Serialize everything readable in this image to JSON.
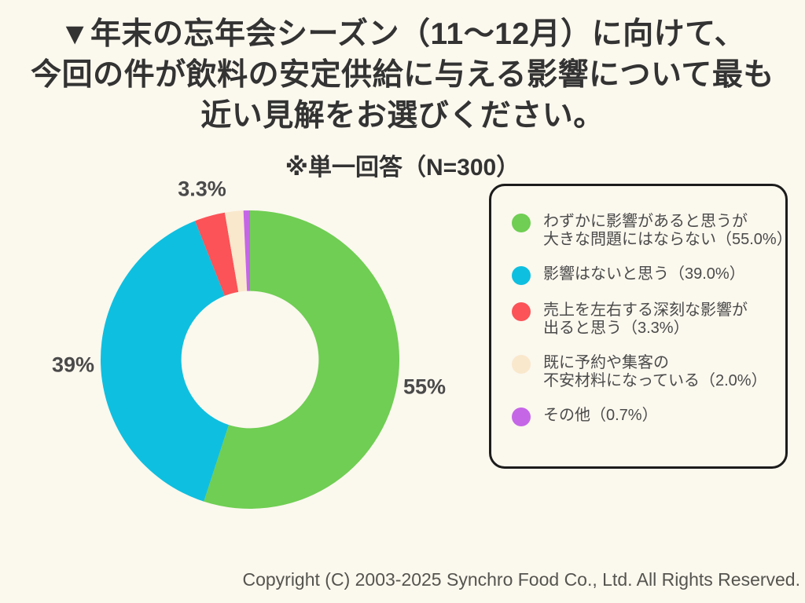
{
  "page": {
    "background": "#FBF8EE"
  },
  "title": {
    "lines": [
      "▼年末の忘年会シーズン（11〜12月）に向けて、",
      "今回の件が飲料の安定供給に与える影響について最も",
      "近い見解をお選びください。"
    ]
  },
  "subtitle": "※単一回答（N=300）",
  "chart_data": {
    "type": "pie",
    "donut": true,
    "start_angle_deg": 0,
    "direction": "clockwise",
    "inner_radius_ratio": 0.46,
    "title": "※単一回答（N=300）",
    "sample_size": "N=300",
    "slices": [
      {
        "label": "わずかに影響があると思うが大きな問題にはならない",
        "value": 55.0,
        "color": "#6FCE53",
        "chart_label": "55%"
      },
      {
        "label": "影響はないと思う",
        "value": 39.0,
        "color": "#0FBFDF",
        "chart_label": "39%"
      },
      {
        "label": "売上を左右する深刻な影響が出ると思う",
        "value": 3.3,
        "color": "#FB5357",
        "chart_label": "3.3%"
      },
      {
        "label": "既に予約や集客の不安材料になっている",
        "value": 2.0,
        "color": "#FAE8CD",
        "chart_label": ""
      },
      {
        "label": "その他",
        "value": 0.7,
        "color": "#C566E7",
        "chart_label": ""
      }
    ],
    "legend_position": "right"
  },
  "legend": {
    "items": [
      {
        "label": "わずかに影響があると思うが\n大きな問題にはならない（55.0%）"
      },
      {
        "label": "影響はないと思う（39.0%）"
      },
      {
        "label": "売上を左右する深刻な影響が\n出ると思う（3.3%）"
      },
      {
        "label": "既に予約や集客の\n不安材料になっている（2.0%）"
      },
      {
        "label": "その他（0.7%）"
      }
    ]
  },
  "footer": {
    "copyright": "Copyright (C) 2003-2025  Synchro Food Co., Ltd. All Rights Reserved."
  }
}
